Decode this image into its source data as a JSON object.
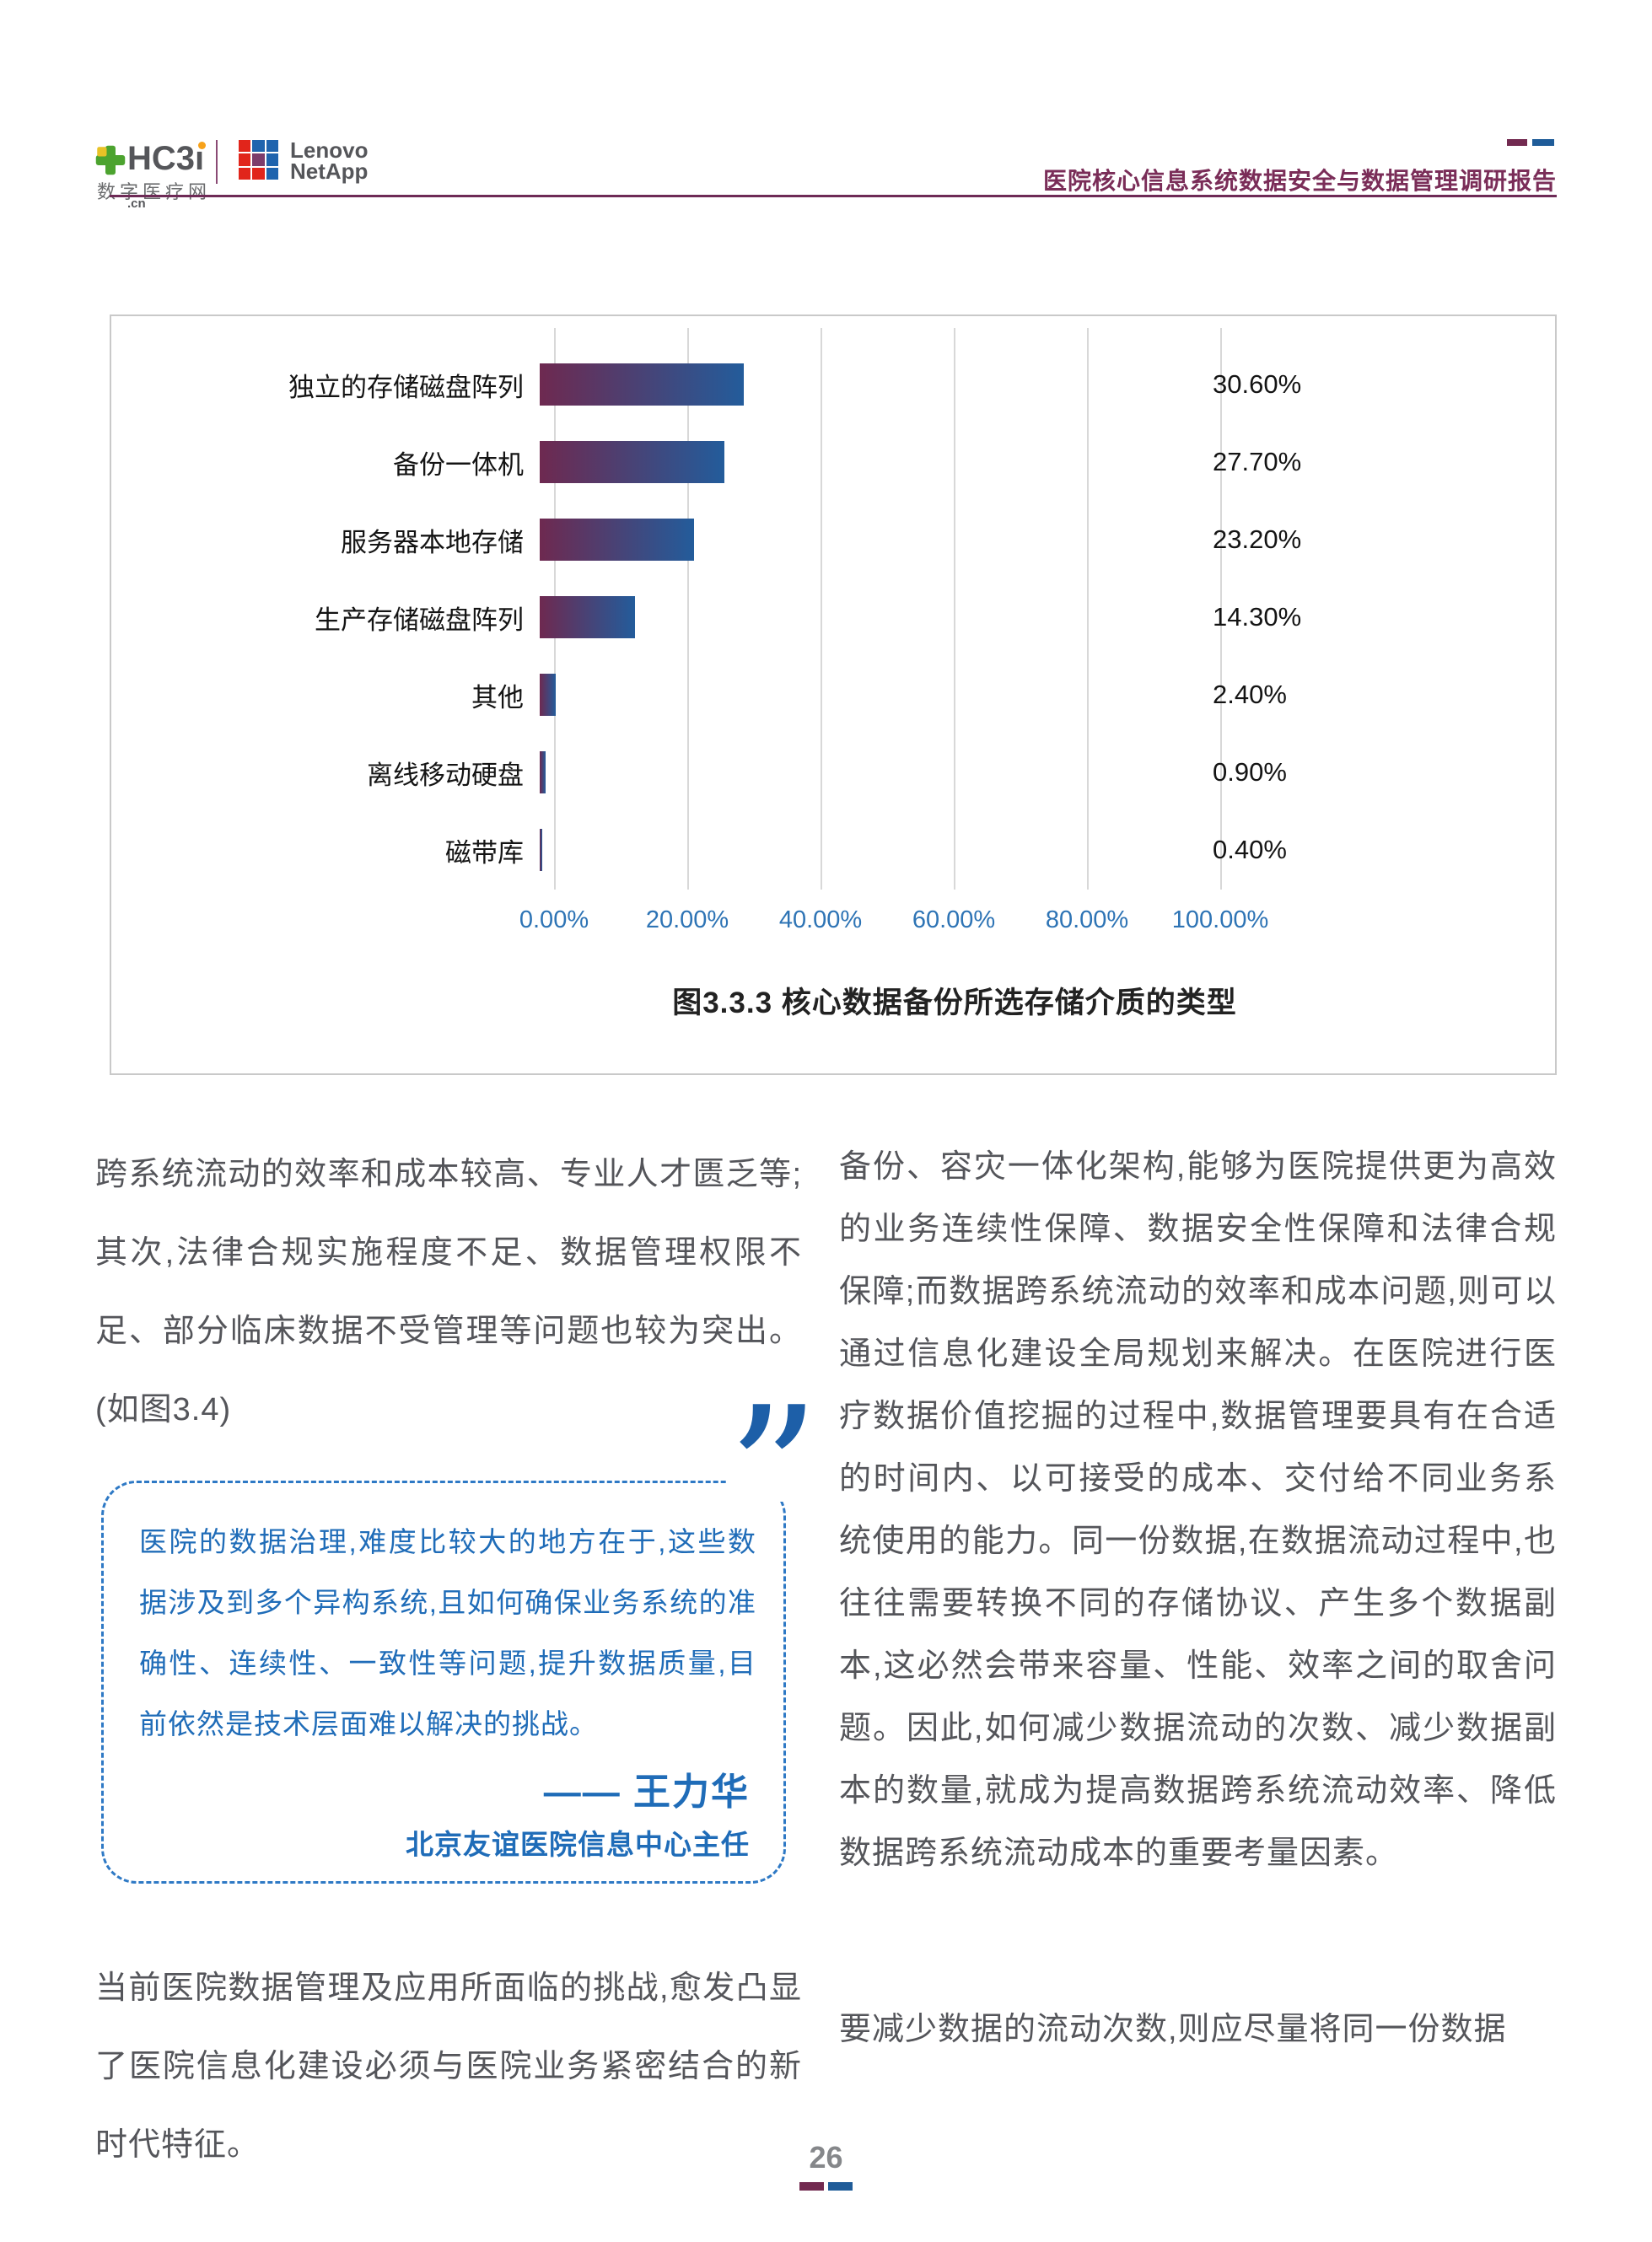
{
  "header": {
    "hc3i": {
      "brand": "HC3",
      "brand_i": "ı",
      "tld": ".cn",
      "subtitle": "数字医疗网"
    },
    "partner": {
      "line1": "Lenovo",
      "line2": "NetApp"
    },
    "report_title": "医院核心信息系统数据安全与数据管理调研报告"
  },
  "chart_data": {
    "type": "bar",
    "orientation": "horizontal",
    "title": "图3.3.3 核心数据备份所选存储介质的类型",
    "categories": [
      "独立的存储磁盘阵列",
      "备份一体机",
      "服务器本地存储",
      "生产存储磁盘阵列",
      "其他",
      "离线移动硬盘",
      "磁带库"
    ],
    "values": [
      30.6,
      27.7,
      23.2,
      14.3,
      2.4,
      0.9,
      0.4
    ],
    "value_labels": [
      "30.60%",
      "27.70%",
      "23.20%",
      "14.30%",
      "2.40%",
      "0.90%",
      "0.40%"
    ],
    "x_ticks": [
      "0.00%",
      "20.00%",
      "40.00%",
      "60.00%",
      "80.00%",
      "100.00%"
    ],
    "xlim": [
      0,
      100
    ],
    "xlabel": "",
    "ylabel": "",
    "grid": true,
    "legend": "none",
    "bar_gradient": [
      "#6e2950",
      "#235c9b"
    ]
  },
  "left_column": {
    "para1": "跨系统流动的效率和成本较高、专业人才匮乏等;其次,法律合规实施程度不足、数据管理权限不足、部分临床数据不受管理等问题也较为突出。(如图3.4)",
    "para2": "当前医院数据管理及应用所面临的挑战,愈发凸显了医院信息化建设必须与医院业务紧密结合的新时代特征。"
  },
  "quote": {
    "mark": "”",
    "text": "医院的数据治理,难度比较大的地方在于,这些数据涉及到多个异构系统,且如何确保业务系统的准确性、连续性、一致性等问题,提升数据质量,目前依然是技术层面难以解决的挑战。",
    "author": "—— 王力华",
    "author_title": "北京友谊医院信息中心主任"
  },
  "right_column": {
    "para1": "备份、容灾一体化架构,能够为医院提供更为高效的业务连续性保障、数据安全性保障和法律合规保障;而数据跨系统流动的效率和成本问题,则可以通过信息化建设全局规划来解决。在医院进行医疗数据价值挖掘的过程中,数据管理要具有在合适的时间内、以可接受的成本、交付给不同业务系统使用的能力。同一份数据,在数据流动过程中,也往往需要转换不同的存储协议、产生多个数据副本,这必然会带来容量、性能、效率之间的取舍问题。因此,如何减少数据流动的次数、减少数据副本的数量,就成为提高数据跨系统流动效率、降低数据跨系统流动成本的重要考量因素。",
    "para2": "要减少数据的流动次数,则应尽量将同一份数据"
  },
  "footer": {
    "page_number": "26"
  },
  "colors": {
    "maroon_accent": "#722a50",
    "blue_accent": "#1f5c99",
    "title_maroon": "#7a2d58",
    "quote_blue": "#1f6cb8",
    "tick_blue": "#2e74b5",
    "body_gray": "#54555a",
    "logo_red": "#e1251b",
    "logo_blue": "#1f64ae",
    "logo_purple": "#7d3c6b",
    "logo_green": "#4ca32f",
    "logo_yellow": "#e8c226"
  }
}
